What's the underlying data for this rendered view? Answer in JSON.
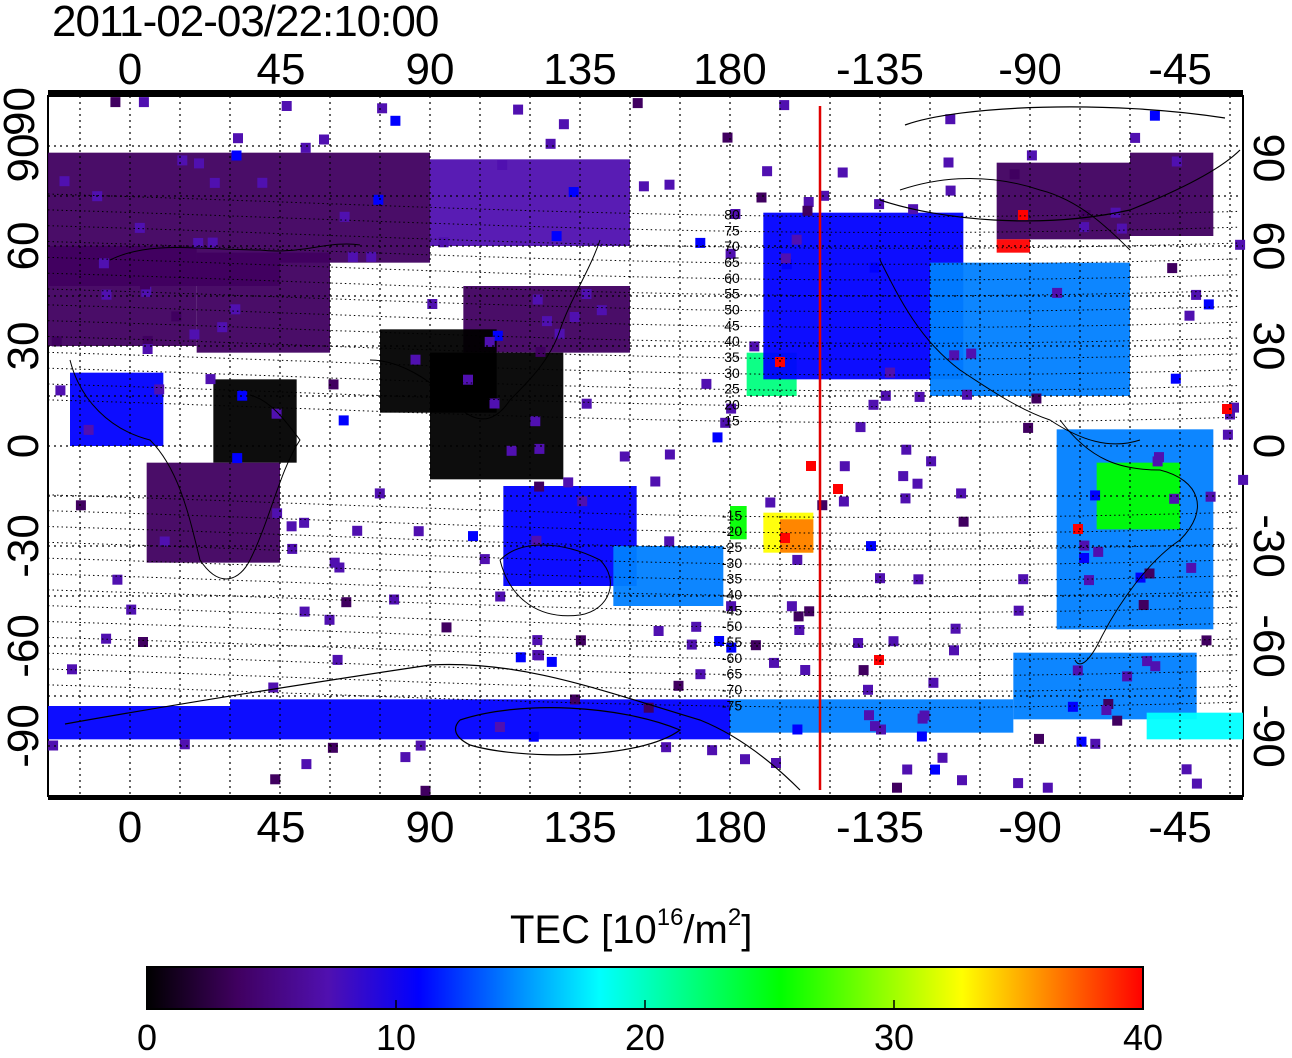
{
  "title": "2011-02-03/22:10:00",
  "top_lon_labels": [
    "0",
    "45",
    "90",
    "135",
    "180",
    "-135",
    "-90",
    "-45"
  ],
  "bottom_lon_labels": [
    "0",
    "45",
    "90",
    "135",
    "180",
    "-135",
    "-90",
    "-45"
  ],
  "left_lat_labels": [
    "90",
    "60",
    "30",
    "0",
    "-30",
    "-60",
    "-90"
  ],
  "right_lat_labels": [
    "90",
    "60",
    "30",
    "0",
    "-30",
    "-60",
    "-90"
  ],
  "magnetic_latitude_labels": [
    "80",
    "75",
    "70",
    "65",
    "60",
    "55",
    "50",
    "45",
    "40",
    "35",
    "30",
    "25",
    "20",
    "15",
    "-15",
    "-20",
    "-25",
    "-30",
    "-35",
    "-40",
    "-45",
    "-50",
    "-55",
    "-60",
    "-65",
    "-70",
    "-75"
  ],
  "colorbar": {
    "title_prefix": "TEC  [10",
    "title_sup1": "16",
    "title_mid": "/m",
    "title_sup2": "2",
    "title_suffix": "]",
    "ticks": [
      "0",
      "10",
      "20",
      "30",
      "40"
    ],
    "range": [
      0,
      40
    ],
    "colors": [
      "#000000",
      "#400060",
      "#5010b0",
      "#0000ff",
      "#0080ff",
      "#00ffff",
      "#00ff80",
      "#00ff00",
      "#80ff00",
      "#ffff00",
      "#ff8000",
      "#ff0000"
    ]
  },
  "terminator_color": "#e00000"
}
